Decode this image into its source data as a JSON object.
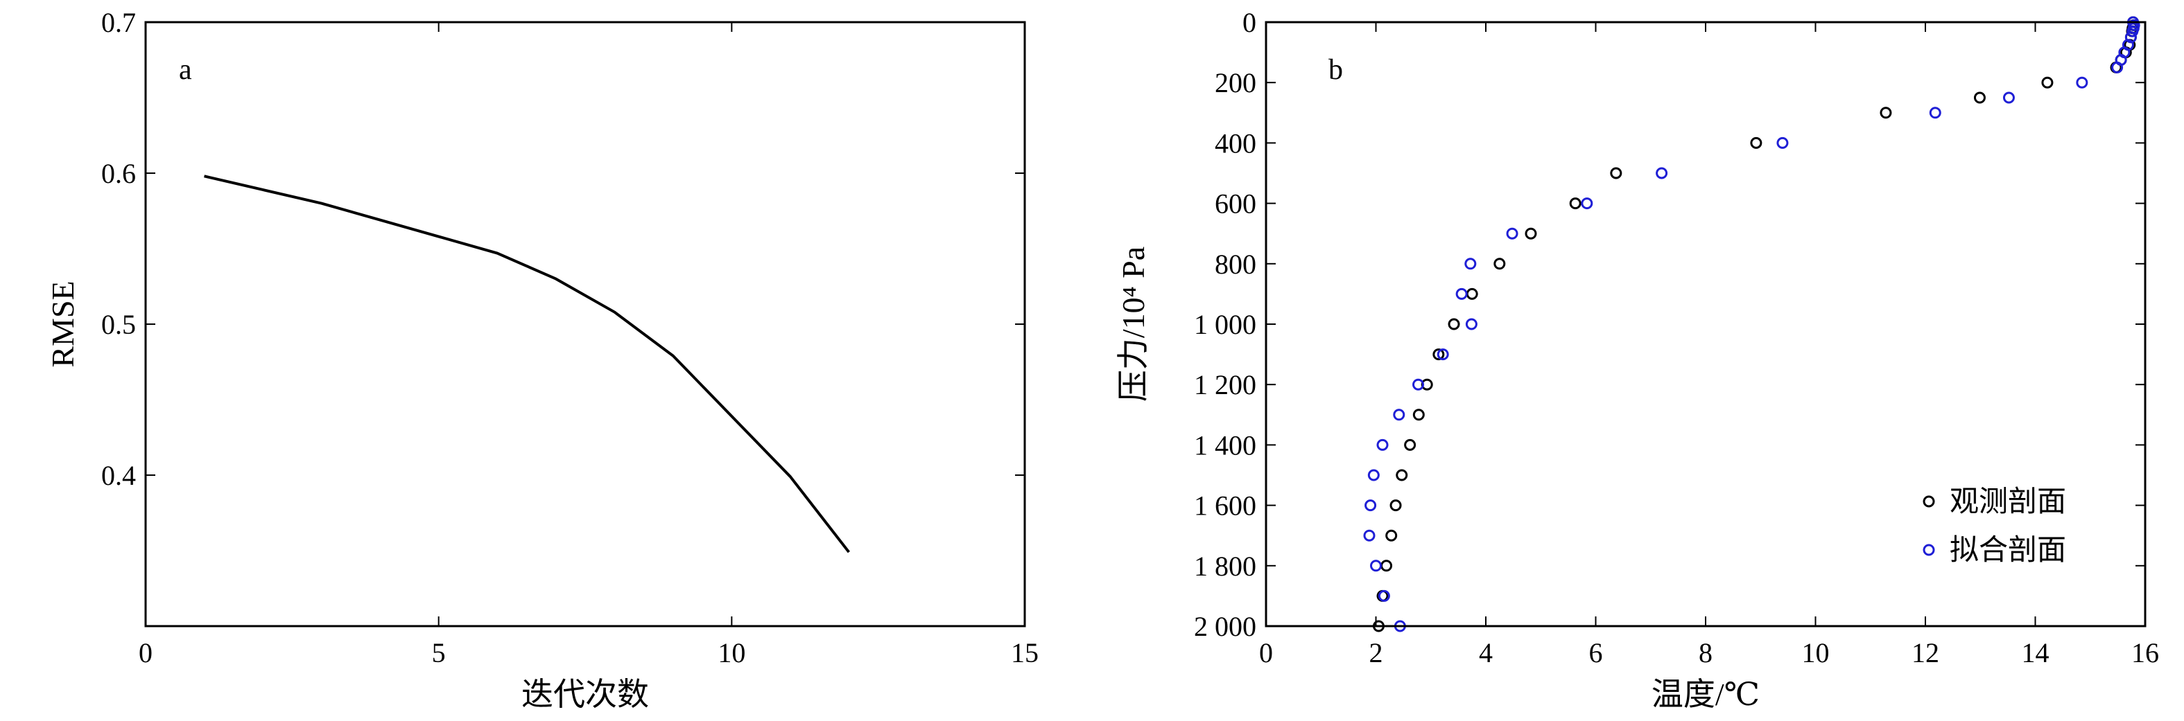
{
  "chart_data": [
    {
      "type": "line",
      "panel_label": "a",
      "xlabel": "迭代次数",
      "ylabel": "RMSE",
      "xlim": [
        0,
        15
      ],
      "ylim": [
        0.3,
        0.7
      ],
      "x_ticks": [
        0,
        5,
        10,
        15
      ],
      "x_tick_labels": [
        "0",
        "5",
        "10",
        "15"
      ],
      "y_ticks": [
        0.4,
        0.5,
        0.6,
        0.7
      ],
      "y_tick_labels": [
        "0.4",
        "0.5",
        "0.6",
        "0.7"
      ],
      "grid": false,
      "series": [
        {
          "x": [
            1,
            2,
            3,
            4,
            5,
            6,
            7,
            8,
            9,
            10,
            11,
            12
          ],
          "y": [
            0.598,
            0.589,
            0.58,
            0.569,
            0.558,
            0.547,
            0.53,
            0.508,
            0.479,
            0.439,
            0.399,
            0.349
          ],
          "color": "#000000"
        }
      ]
    },
    {
      "type": "scatter",
      "panel_label": "b",
      "xlabel": "温度/℃",
      "ylabel": "压力/10⁴ Pa",
      "xlim": [
        0,
        16
      ],
      "ylim": [
        2000,
        0
      ],
      "y_inverted": true,
      "x_ticks": [
        0,
        2,
        4,
        6,
        8,
        10,
        12,
        14,
        16
      ],
      "x_tick_labels": [
        "0",
        "2",
        "4",
        "6",
        "8",
        "10",
        "12",
        "14",
        "16"
      ],
      "y_ticks": [
        0,
        200,
        400,
        600,
        800,
        1000,
        1200,
        1400,
        1600,
        1800,
        2000
      ],
      "y_tick_labels": [
        "0",
        "200",
        "400",
        "600",
        "800",
        "1 000",
        "1 200",
        "1 400",
        "1 600",
        "1 800",
        "2 000"
      ],
      "grid": false,
      "legend_position": "bottom-right",
      "series": [
        {
          "name": "观测剖面",
          "color": "#000000",
          "points": [
            [
              15.78,
              0
            ],
            [
              15.79,
              10
            ],
            [
              15.77,
              20
            ],
            [
              15.76,
              30
            ],
            [
              15.74,
              50
            ],
            [
              15.72,
              75
            ],
            [
              15.65,
              100
            ],
            [
              15.56,
              125
            ],
            [
              15.47,
              150
            ],
            [
              14.22,
              200
            ],
            [
              12.99,
              250
            ],
            [
              11.28,
              300
            ],
            [
              8.92,
              400
            ],
            [
              6.37,
              500
            ],
            [
              5.63,
              600
            ],
            [
              4.82,
              700
            ],
            [
              4.25,
              800
            ],
            [
              3.75,
              900
            ],
            [
              3.42,
              1000
            ],
            [
              3.14,
              1100
            ],
            [
              2.93,
              1200
            ],
            [
              2.78,
              1300
            ],
            [
              2.62,
              1400
            ],
            [
              2.47,
              1500
            ],
            [
              2.36,
              1600
            ],
            [
              2.28,
              1700
            ],
            [
              2.19,
              1800
            ],
            [
              2.12,
              1900
            ],
            [
              2.05,
              2000
            ]
          ]
        },
        {
          "name": "拟合剖面",
          "color": "#1f1fd6",
          "points": [
            [
              15.78,
              0
            ],
            [
              15.8,
              10
            ],
            [
              15.79,
              20
            ],
            [
              15.77,
              30
            ],
            [
              15.74,
              50
            ],
            [
              15.69,
              75
            ],
            [
              15.62,
              100
            ],
            [
              15.56,
              125
            ],
            [
              15.49,
              150
            ],
            [
              14.85,
              200
            ],
            [
              13.52,
              250
            ],
            [
              12.18,
              300
            ],
            [
              9.4,
              400
            ],
            [
              7.2,
              500
            ],
            [
              5.84,
              600
            ],
            [
              4.48,
              700
            ],
            [
              3.72,
              800
            ],
            [
              3.56,
              900
            ],
            [
              3.74,
              1000
            ],
            [
              3.22,
              1100
            ],
            [
              2.77,
              1200
            ],
            [
              2.42,
              1300
            ],
            [
              2.12,
              1400
            ],
            [
              1.96,
              1500
            ],
            [
              1.9,
              1600
            ],
            [
              1.88,
              1700
            ],
            [
              2.0,
              1800
            ],
            [
              2.15,
              1900
            ],
            [
              2.44,
              2000
            ]
          ]
        }
      ]
    }
  ]
}
